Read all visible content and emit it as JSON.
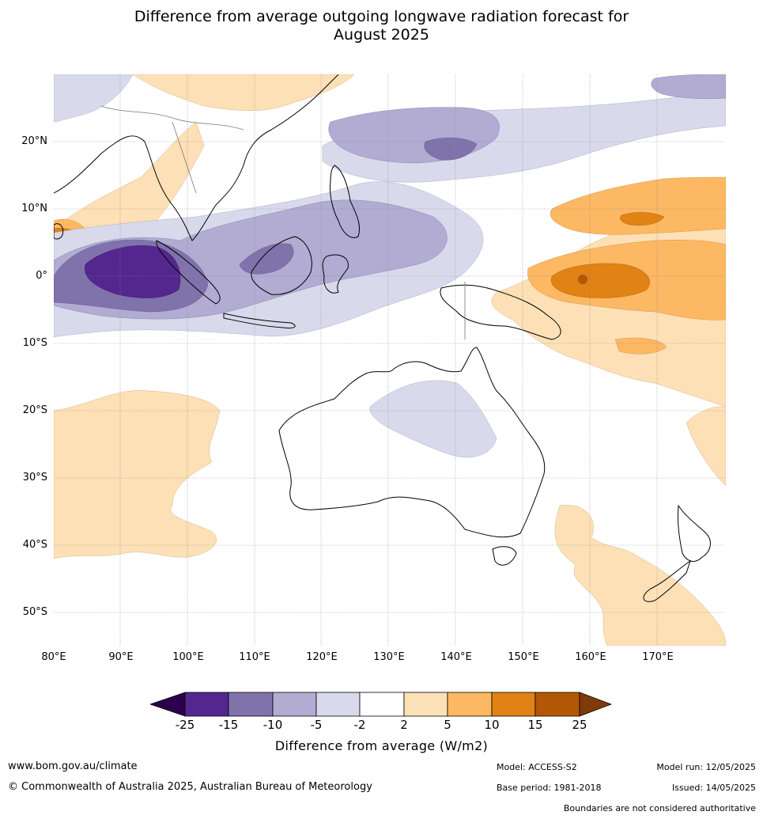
{
  "title_line1": "Difference from average outgoing longwave radiation forecast for",
  "title_line2": "August 2025",
  "map": {
    "type": "filled-contour-anomaly-map",
    "projection": "equirectangular",
    "extent": {
      "lon": [
        80,
        180
      ],
      "lat": [
        -55,
        30
      ]
    },
    "gridlines": true,
    "lat_ticks": [
      "20°N",
      "10°N",
      "0°",
      "10°S",
      "20°S",
      "30°S",
      "40°S",
      "50°S"
    ],
    "lon_ticks": [
      "80°E",
      "90°E",
      "100°E",
      "110°E",
      "120°E",
      "130°E",
      "140°E",
      "150°E",
      "160°E",
      "170°E"
    ],
    "regions_described": [
      {
        "area": "Eastern Indian Ocean near Sumatra",
        "anomaly_range": "-25 to -15",
        "color": "#54278f"
      },
      {
        "area": "Maritime continent / Borneo / Sulawesi",
        "anomaly_range": "-10 to -5",
        "color": "#9e9ac8"
      },
      {
        "area": "Philippine Sea near 20N 140E",
        "anomaly_range": "-15 to -10",
        "color": "#8073ac"
      },
      {
        "area": "Equatorial Pacific 155-180E",
        "anomaly_range": "5 to 15",
        "color": "#e08214"
      },
      {
        "area": "Central Australia",
        "anomaly_range": "-5 to -2",
        "color": "#d8daeb"
      },
      {
        "area": "Southern Indian Ocean",
        "anomaly_range": "2 to 5",
        "color": "#fee0b6"
      }
    ]
  },
  "colorbar": {
    "tick_labels": [
      "-25",
      "-15",
      "-10",
      "-5",
      "-2",
      "2",
      "5",
      "10",
      "15",
      "25"
    ],
    "colors": [
      "#2d004b",
      "#54278f",
      "#8073ac",
      "#b2abd2",
      "#d8daeb",
      "#ffffff",
      "#fee0b6",
      "#fdb863",
      "#e08214",
      "#b35806",
      "#7f3b08"
    ],
    "label": "Difference from average (W/m2)"
  },
  "footer": {
    "website": "www.bom.gov.au/climate",
    "copyright": "© Commonwealth of Australia 2025, Australian Bureau of Meteorology",
    "model": "Model: ACCESS-S2",
    "model_run": "Model run: 12/05/2025",
    "base_period": "Base period: 1981-2018",
    "issued": "Issued: 14/05/2025",
    "disclaimer": "Boundaries are not considered authoritative"
  }
}
